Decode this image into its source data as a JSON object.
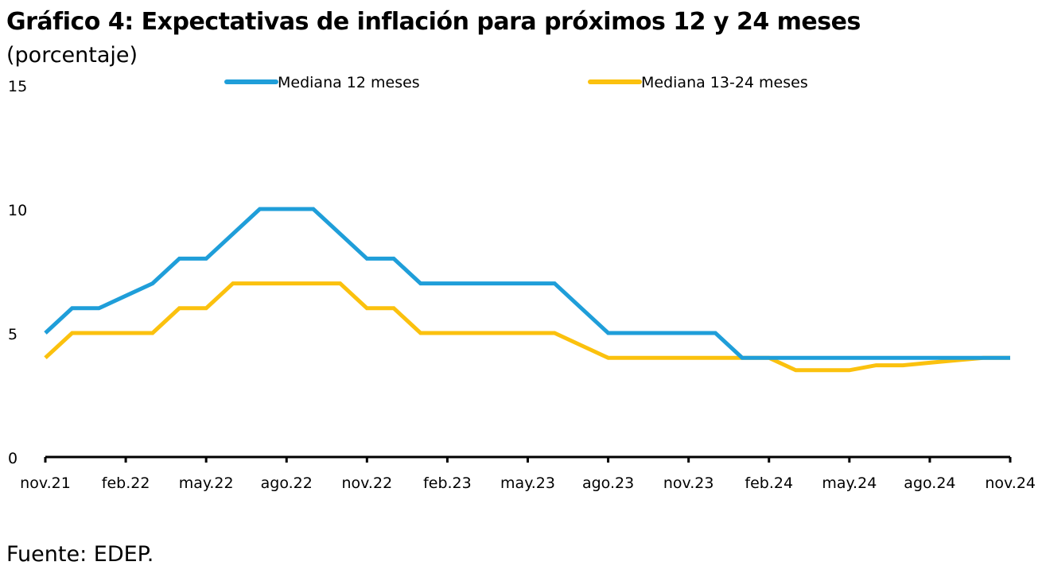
{
  "header": {
    "title": "Gráfico 4: Expectativas de inflación para próximos 12 y 24 meses",
    "subtitle": "(porcentaje)"
  },
  "footer": {
    "source": "Fuente: EDEP."
  },
  "chart_data": {
    "type": "line",
    "title": "Gráfico 4: Expectativas de inflación para próximos 12 y 24 meses",
    "ylabel": "(porcentaje)",
    "ylim": [
      0,
      15
    ],
    "yticks": [
      0,
      5,
      10,
      15
    ],
    "x": [
      "nov.21",
      "dic.21",
      "ene.22",
      "feb.22",
      "mar.22",
      "abr.22",
      "may.22",
      "jun.22",
      "jul.22",
      "ago.22",
      "sep.22",
      "oct.22",
      "nov.22",
      "dic.22",
      "ene.23",
      "feb.23",
      "mar.23",
      "abr.23",
      "may.23",
      "jun.23",
      "jul.23",
      "ago.23",
      "sep.23",
      "oct.23",
      "nov.23",
      "dic.23",
      "ene.24",
      "feb.24",
      "mar.24",
      "abr.24",
      "may.24",
      "jun.24",
      "jul.24",
      "ago.24",
      "sep.24",
      "oct.24",
      "nov.24"
    ],
    "xtick_labels": [
      "nov.21",
      "feb.22",
      "may.22",
      "ago.22",
      "nov.22",
      "feb.23",
      "may.23",
      "ago.23",
      "nov.23",
      "feb.24",
      "may.24",
      "ago.24",
      "nov.24"
    ],
    "xtick_step": 3,
    "grid": false,
    "legend_position": "top",
    "series": [
      {
        "name": "Mediana 12 meses",
        "color": "#1f9ed9",
        "values": [
          5,
          6,
          6,
          6.5,
          7,
          8,
          8,
          9,
          10,
          10,
          10,
          9,
          8,
          8,
          7,
          7,
          7,
          7,
          7,
          7,
          6,
          5,
          5,
          5,
          5,
          5,
          4,
          4,
          4,
          4,
          4,
          4,
          4,
          4,
          4,
          4,
          4
        ]
      },
      {
        "name": "Mediana 13-24 meses",
        "color": "#fbc10e",
        "values": [
          4,
          5,
          5,
          5,
          5,
          6,
          6,
          7,
          7,
          7,
          7,
          7,
          6,
          6,
          5,
          5,
          5,
          5,
          5,
          5,
          4.5,
          4,
          4,
          4,
          4,
          4,
          4,
          4,
          3.5,
          3.5,
          3.5,
          3.7,
          3.7,
          3.8,
          3.9,
          4,
          4
        ]
      }
    ]
  }
}
